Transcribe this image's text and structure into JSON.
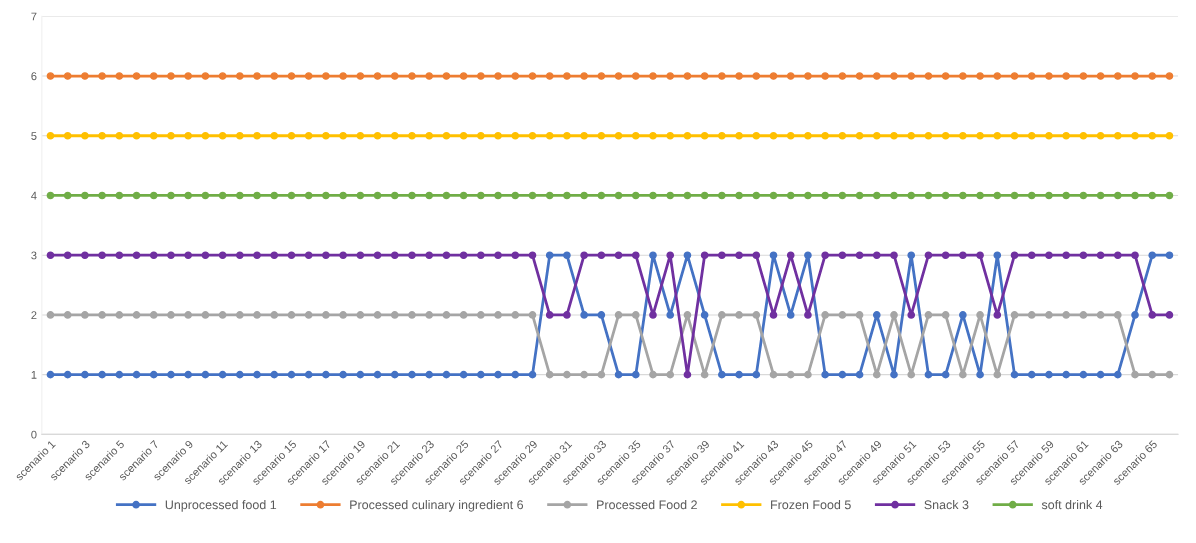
{
  "chart_data": {
    "type": "line",
    "categories": [
      "scenario 1",
      null,
      "scenario 3",
      null,
      "scenario 5",
      null,
      "scenario 7",
      null,
      "scenario 9",
      null,
      "scenario 11",
      null,
      "scenario 13",
      null,
      "scenario 15",
      null,
      "scenario 17",
      null,
      "scenario 19",
      null,
      "scenario 21",
      null,
      "scenario 23",
      null,
      "scenario 25",
      null,
      "scenario 27",
      null,
      "scenario 29",
      null,
      "scenario 31",
      null,
      "scenario 33",
      null,
      "scenario 35",
      null,
      "scenario 37",
      null,
      "scenario 39",
      null,
      "scenario 41",
      null,
      "scenario 43",
      null,
      "scenario 45",
      null,
      "scenario 47",
      null,
      "scenario 49",
      null,
      "scenario 51",
      null,
      "scenario 53",
      null,
      "scenario 55",
      null,
      "scenario 57",
      null,
      "scenario 59",
      null,
      "scenario 61",
      null,
      "scenario 63",
      null,
      "scenario 65",
      null
    ],
    "series": [
      {
        "name": "Unprocessed food 1",
        "color": "#4472c4",
        "values": [
          1,
          1,
          1,
          1,
          1,
          1,
          1,
          1,
          1,
          1,
          1,
          1,
          1,
          1,
          1,
          1,
          1,
          1,
          1,
          1,
          1,
          1,
          1,
          1,
          1,
          1,
          1,
          1,
          1,
          3,
          3,
          2,
          2,
          1,
          1,
          3,
          2,
          3,
          2,
          1,
          1,
          1,
          3,
          2,
          3,
          1,
          1,
          1,
          2,
          1,
          3,
          1,
          1,
          2,
          1,
          3,
          1,
          1,
          1,
          1,
          1,
          1,
          1,
          2,
          3,
          3
        ]
      },
      {
        "name": "Processed culinary ingredient 6",
        "color": "#ed7d31",
        "values": [
          6,
          6,
          6,
          6,
          6,
          6,
          6,
          6,
          6,
          6,
          6,
          6,
          6,
          6,
          6,
          6,
          6,
          6,
          6,
          6,
          6,
          6,
          6,
          6,
          6,
          6,
          6,
          6,
          6,
          6,
          6,
          6,
          6,
          6,
          6,
          6,
          6,
          6,
          6,
          6,
          6,
          6,
          6,
          6,
          6,
          6,
          6,
          6,
          6,
          6,
          6,
          6,
          6,
          6,
          6,
          6,
          6,
          6,
          6,
          6,
          6,
          6,
          6,
          6,
          6,
          6
        ]
      },
      {
        "name": "Processed Food 2",
        "color": "#a5a5a5",
        "values": [
          2,
          2,
          2,
          2,
          2,
          2,
          2,
          2,
          2,
          2,
          2,
          2,
          2,
          2,
          2,
          2,
          2,
          2,
          2,
          2,
          2,
          2,
          2,
          2,
          2,
          2,
          2,
          2,
          2,
          1,
          1,
          1,
          1,
          2,
          2,
          1,
          1,
          2,
          1,
          2,
          2,
          2,
          1,
          1,
          1,
          2,
          2,
          2,
          1,
          2,
          1,
          2,
          2,
          1,
          2,
          1,
          2,
          2,
          2,
          2,
          2,
          2,
          2,
          1,
          1,
          1
        ]
      },
      {
        "name": "Frozen Food 5",
        "color": "#ffc000",
        "values": [
          5,
          5,
          5,
          5,
          5,
          5,
          5,
          5,
          5,
          5,
          5,
          5,
          5,
          5,
          5,
          5,
          5,
          5,
          5,
          5,
          5,
          5,
          5,
          5,
          5,
          5,
          5,
          5,
          5,
          5,
          5,
          5,
          5,
          5,
          5,
          5,
          5,
          5,
          5,
          5,
          5,
          5,
          5,
          5,
          5,
          5,
          5,
          5,
          5,
          5,
          5,
          5,
          5,
          5,
          5,
          5,
          5,
          5,
          5,
          5,
          5,
          5,
          5,
          5,
          5,
          5
        ]
      },
      {
        "name": "Snack 3",
        "color": "#7030a0",
        "values": [
          3,
          3,
          3,
          3,
          3,
          3,
          3,
          3,
          3,
          3,
          3,
          3,
          3,
          3,
          3,
          3,
          3,
          3,
          3,
          3,
          3,
          3,
          3,
          3,
          3,
          3,
          3,
          3,
          3,
          2,
          2,
          3,
          3,
          3,
          3,
          2,
          3,
          1,
          3,
          3,
          3,
          3,
          2,
          3,
          2,
          3,
          3,
          3,
          3,
          3,
          2,
          3,
          3,
          3,
          3,
          2,
          3,
          3,
          3,
          3,
          3,
          3,
          3,
          3,
          2,
          2
        ]
      },
      {
        "name": "soft drink 4",
        "color": "#70ad47",
        "values": [
          4,
          4,
          4,
          4,
          4,
          4,
          4,
          4,
          4,
          4,
          4,
          4,
          4,
          4,
          4,
          4,
          4,
          4,
          4,
          4,
          4,
          4,
          4,
          4,
          4,
          4,
          4,
          4,
          4,
          4,
          4,
          4,
          4,
          4,
          4,
          4,
          4,
          4,
          4,
          4,
          4,
          4,
          4,
          4,
          4,
          4,
          4,
          4,
          4,
          4,
          4,
          4,
          4,
          4,
          4,
          4,
          4,
          4,
          4,
          4,
          4,
          4,
          4,
          4,
          4,
          4
        ]
      }
    ],
    "ylim": [
      0,
      7
    ],
    "yticks": [
      0,
      1,
      2,
      3,
      4,
      5,
      6,
      7
    ],
    "grid": "y",
    "legend": "bottom",
    "marker": "circle",
    "line_style": "solid"
  }
}
